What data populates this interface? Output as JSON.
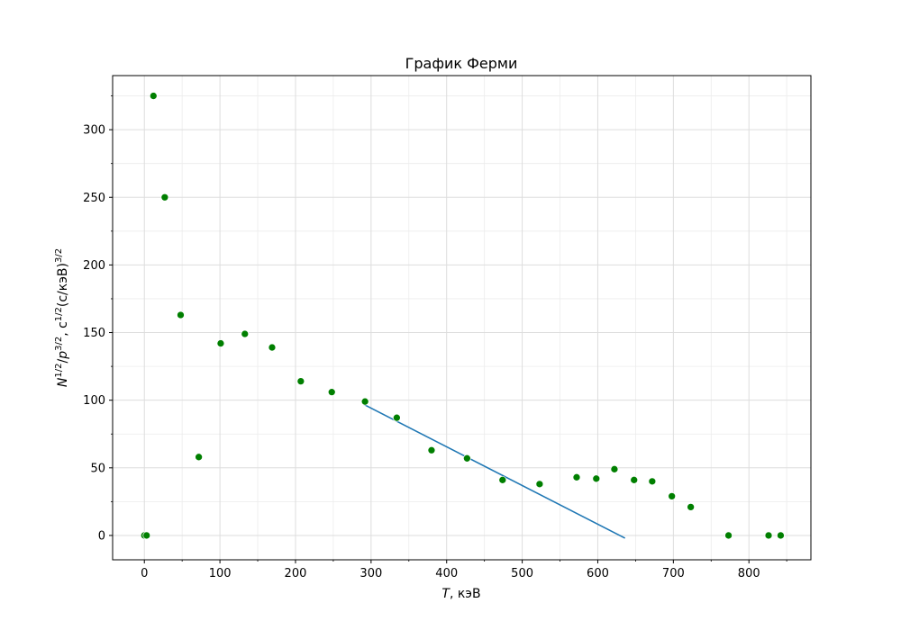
{
  "chart_data": {
    "type": "scatter",
    "title": "График Ферми",
    "xlabel": {
      "var": "T",
      "rest": ", кэВ"
    },
    "ylabel": {
      "n": "N",
      "n_exp": "1/2",
      "sep": "/",
      "p": "p",
      "p_exp": "3/2",
      "unit_pre": ", c",
      "unit_exp1": "1/2",
      "unit_mid": "(c/кэВ)",
      "unit_exp2": "3/2"
    },
    "xlim": [
      -42,
      882
    ],
    "ylim": [
      -18,
      340
    ],
    "xticks": [
      0,
      100,
      200,
      300,
      400,
      500,
      600,
      700,
      800
    ],
    "yticks": [
      0,
      50,
      100,
      150,
      200,
      250,
      300
    ],
    "grid": true,
    "colors": {
      "points": "#007f00",
      "fit": "#1f77b4",
      "grid": "#dddddd"
    },
    "series": [
      {
        "kind": "points",
        "x": [
          0,
          3,
          12,
          27,
          48,
          72,
          101,
          133,
          169,
          207,
          248,
          292,
          334,
          380,
          427,
          474,
          523,
          572,
          598,
          622,
          648,
          672,
          698,
          723,
          773,
          826,
          842
        ],
        "y": [
          0,
          0,
          325,
          250,
          163,
          58,
          142,
          149,
          139,
          114,
          106,
          99,
          87,
          63,
          57,
          41,
          38,
          43,
          42,
          49,
          41,
          40,
          29,
          21,
          0,
          0,
          0
        ]
      },
      {
        "kind": "fit-line",
        "x": [
          290,
          636
        ],
        "y": [
          97,
          -2
        ]
      }
    ]
  }
}
